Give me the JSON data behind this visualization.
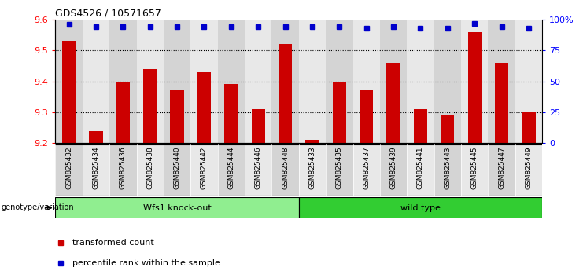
{
  "title": "GDS4526 / 10571657",
  "samples": [
    "GSM825432",
    "GSM825434",
    "GSM825436",
    "GSM825438",
    "GSM825440",
    "GSM825442",
    "GSM825444",
    "GSM825446",
    "GSM825448",
    "GSM825433",
    "GSM825435",
    "GSM825437",
    "GSM825439",
    "GSM825441",
    "GSM825443",
    "GSM825445",
    "GSM825447",
    "GSM825449"
  ],
  "bar_values": [
    9.53,
    9.24,
    9.4,
    9.44,
    9.37,
    9.43,
    9.39,
    9.31,
    9.52,
    9.21,
    9.4,
    9.37,
    9.46,
    9.31,
    9.29,
    9.56,
    9.46,
    9.3
  ],
  "percentile_values": [
    96,
    94,
    94,
    94,
    94,
    94,
    94,
    94,
    94,
    94,
    94,
    93,
    94,
    93,
    93,
    97,
    94,
    93
  ],
  "bar_color": "#cc0000",
  "dot_color": "#0000cc",
  "ylim_left": [
    9.2,
    9.6
  ],
  "ylim_right": [
    0,
    100
  ],
  "right_ticks": [
    0,
    25,
    50,
    75,
    100
  ],
  "right_tick_labels": [
    "0",
    "25",
    "50",
    "75",
    "100%"
  ],
  "left_ticks": [
    9.2,
    9.3,
    9.4,
    9.5,
    9.6
  ],
  "dotted_lines": [
    9.3,
    9.4,
    9.5
  ],
  "group1_label": "Wfs1 knock-out",
  "group2_label": "wild type",
  "group1_count": 9,
  "group2_count": 9,
  "group1_color": "#90ee90",
  "group2_color": "#32cd32",
  "genotype_label": "genotype/variation",
  "legend_bar_label": "transformed count",
  "legend_dot_label": "percentile rank within the sample",
  "col_color_even": "#d4d4d4",
  "col_color_odd": "#e8e8e8",
  "plot_bg_color": "#ffffff"
}
